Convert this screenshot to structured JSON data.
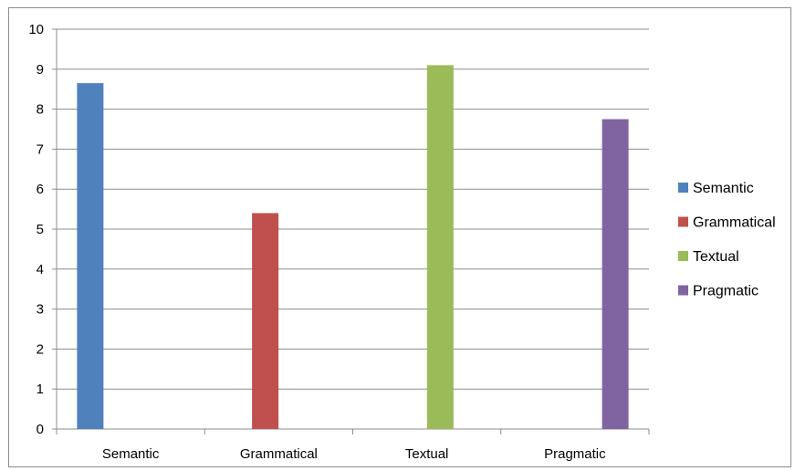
{
  "chart_data": {
    "type": "bar",
    "categories": [
      "Semantic",
      "Grammatical",
      "Textual",
      "Pragmatic"
    ],
    "series": [
      {
        "name": "Semantic",
        "color": "#4f81bd",
        "values": [
          8.65,
          null,
          null,
          null
        ]
      },
      {
        "name": "Grammatical",
        "color": "#c0504d",
        "values": [
          null,
          5.4,
          null,
          null
        ]
      },
      {
        "name": "Textual",
        "color": "#9bbb59",
        "values": [
          null,
          null,
          9.1,
          null
        ]
      },
      {
        "name": "Pragmatic",
        "color": "#8064a2",
        "values": [
          null,
          null,
          null,
          7.75
        ]
      }
    ],
    "ylim": [
      0,
      10
    ],
    "yticks": [
      "0",
      "1",
      "2",
      "3",
      "4",
      "5",
      "6",
      "7",
      "8",
      "9",
      "10"
    ],
    "grid": true,
    "legend_position": "right",
    "title": "",
    "xlabel": "",
    "ylabel": ""
  }
}
